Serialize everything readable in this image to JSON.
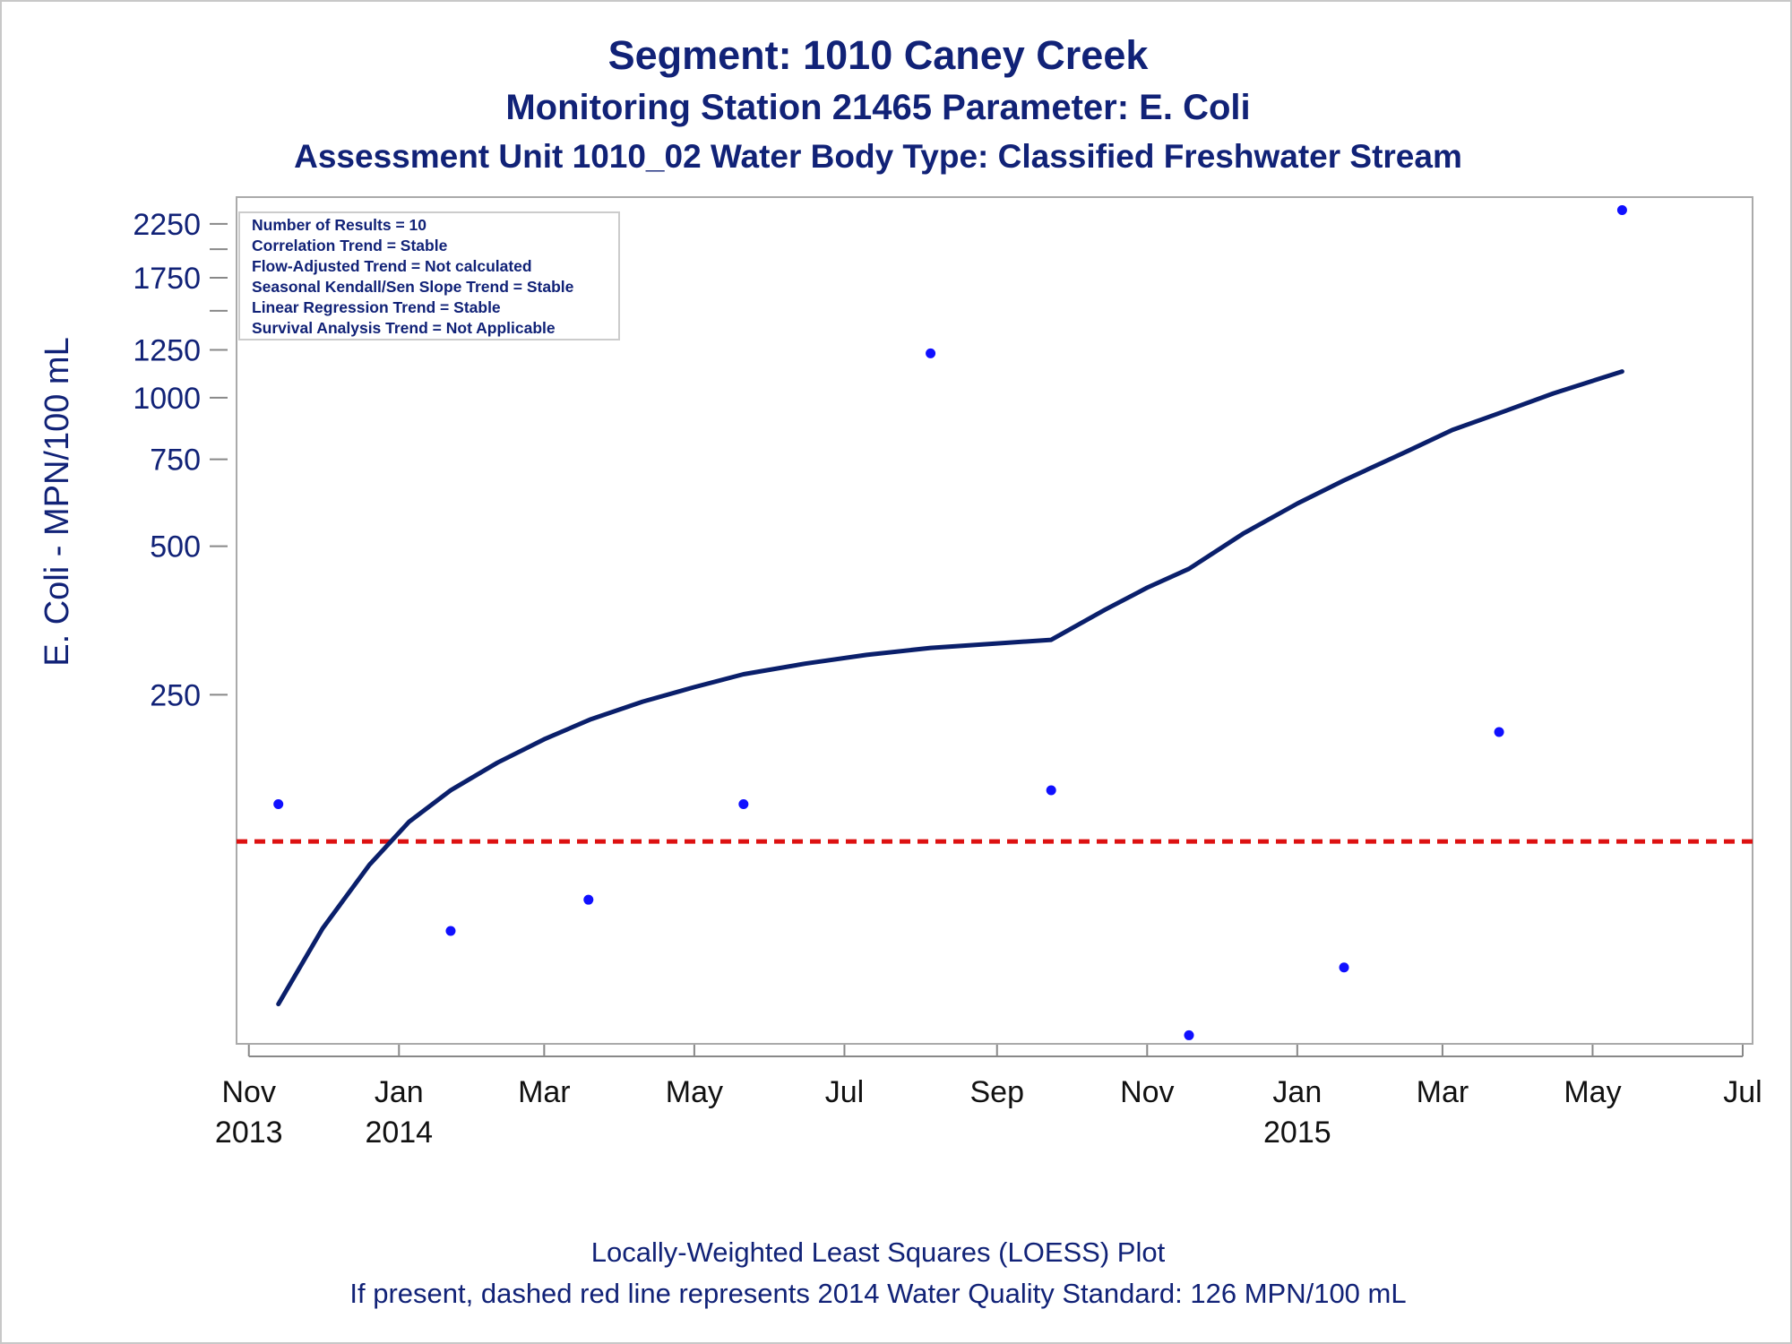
{
  "titles": {
    "line1": "Segment: 1010  Caney Creek",
    "line2": "Monitoring Station 21465 Parameter: E. Coli",
    "line3": "Assessment Unit 1010_02   Water Body Type: Classified Freshwater Stream"
  },
  "footnotes": {
    "line1": "Locally-Weighted Least Squares (LOESS) Plot",
    "line2": "If present, dashed red line represents 2014 Water Quality Standard: 126 MPN/100 mL"
  },
  "colors": {
    "title": "#112277",
    "loess_line": "#0a1f6b",
    "points": "#1010ff",
    "standard_line": "#dd1111",
    "axis": "#888888",
    "frame": "#aaaaaa"
  },
  "chart_data": {
    "type": "scatter",
    "ylabel": "E. Coli - MPN/100 mL",
    "xlabel": "",
    "y_scale": "log",
    "y_ticks": [
      250,
      500,
      750,
      1000,
      1250,
      1750,
      2250
    ],
    "y_minor_ticks": [
      1500,
      2000
    ],
    "ylim": [
      49,
      2550
    ],
    "xlim": [
      "2013-10-27",
      "2015-07-05"
    ],
    "x_ticks": [
      {
        "date": "2013-11-01",
        "month": "Nov",
        "year": "2013"
      },
      {
        "date": "2014-01-01",
        "month": "Jan",
        "year": "2014"
      },
      {
        "date": "2014-03-01",
        "month": "Mar",
        "year": ""
      },
      {
        "date": "2014-05-01",
        "month": "May",
        "year": ""
      },
      {
        "date": "2014-07-01",
        "month": "Jul",
        "year": ""
      },
      {
        "date": "2014-09-01",
        "month": "Sep",
        "year": ""
      },
      {
        "date": "2014-11-01",
        "month": "Nov",
        "year": ""
      },
      {
        "date": "2015-01-01",
        "month": "Jan",
        "year": "2015"
      },
      {
        "date": "2015-03-01",
        "month": "Mar",
        "year": ""
      },
      {
        "date": "2015-05-01",
        "month": "May",
        "year": ""
      },
      {
        "date": "2015-07-01",
        "month": "Jul",
        "year": ""
      }
    ],
    "legend_box": [
      "Number of Results = 10",
      "Correlation Trend = Stable",
      "Flow-Adjusted Trend = Not calculated",
      "Seasonal Kendall/Sen Slope Trend = Stable",
      "Linear Regression Trend = Stable",
      "Survival Analysis Trend = Not Applicable"
    ],
    "legend_placement": "top-left",
    "points": [
      {
        "x": "2013-11-13",
        "y": 150
      },
      {
        "x": "2014-01-22",
        "y": 83
      },
      {
        "x": "2014-03-19",
        "y": 96
      },
      {
        "x": "2014-05-21",
        "y": 150
      },
      {
        "x": "2014-08-05",
        "y": 1230
      },
      {
        "x": "2014-09-23",
        "y": 160
      },
      {
        "x": "2014-11-18",
        "y": 51
      },
      {
        "x": "2015-01-20",
        "y": 70
      },
      {
        "x": "2015-03-24",
        "y": 210
      },
      {
        "x": "2015-05-13",
        "y": 2400
      }
    ],
    "loess_line": [
      {
        "x": "2013-11-13",
        "y": 59
      },
      {
        "x": "2013-12-01",
        "y": 84
      },
      {
        "x": "2013-12-20",
        "y": 113
      },
      {
        "x": "2014-01-05",
        "y": 138
      },
      {
        "x": "2014-01-22",
        "y": 160
      },
      {
        "x": "2014-02-10",
        "y": 182
      },
      {
        "x": "2014-03-01",
        "y": 203
      },
      {
        "x": "2014-03-20",
        "y": 223
      },
      {
        "x": "2014-04-10",
        "y": 242
      },
      {
        "x": "2014-05-01",
        "y": 259
      },
      {
        "x": "2014-05-21",
        "y": 275
      },
      {
        "x": "2014-06-15",
        "y": 289
      },
      {
        "x": "2014-07-10",
        "y": 301
      },
      {
        "x": "2014-08-05",
        "y": 311
      },
      {
        "x": "2014-08-30",
        "y": 317
      },
      {
        "x": "2014-09-23",
        "y": 323
      },
      {
        "x": "2014-10-15",
        "y": 372
      },
      {
        "x": "2014-11-01",
        "y": 412
      },
      {
        "x": "2014-11-18",
        "y": 450
      },
      {
        "x": "2014-12-10",
        "y": 530
      },
      {
        "x": "2015-01-01",
        "y": 610
      },
      {
        "x": "2015-01-20",
        "y": 680
      },
      {
        "x": "2015-02-15",
        "y": 780
      },
      {
        "x": "2015-03-05",
        "y": 860
      },
      {
        "x": "2015-03-24",
        "y": 930
      },
      {
        "x": "2015-04-15",
        "y": 1020
      },
      {
        "x": "2015-05-13",
        "y": 1130
      }
    ],
    "reference_line": {
      "y": 126
    }
  }
}
